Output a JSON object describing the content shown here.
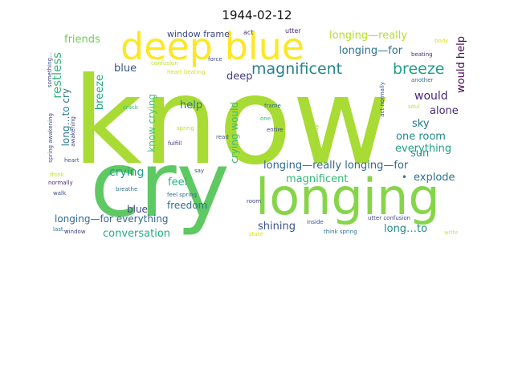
{
  "title": "1944-02-12",
  "words": [
    {
      "text": "know",
      "color": "#a8db34"
    },
    {
      "text": "cry",
      "color": "#5ec962"
    },
    {
      "text": "longing",
      "color": "#86d549"
    },
    {
      "text": "deep blue",
      "color": "#fde725"
    },
    {
      "text": "magnificent",
      "color": "#26828e"
    },
    {
      "text": "breeze",
      "color": "#1f9e89"
    },
    {
      "text": "longing—really",
      "color": "#b5de2b"
    },
    {
      "text": "longing—for",
      "color": "#2c728e"
    },
    {
      "text": "longing—really longing—for",
      "color": "#31688e"
    },
    {
      "text": "window frame",
      "color": "#3e4a89"
    },
    {
      "text": "friends",
      "color": "#6ece58"
    },
    {
      "text": "restless",
      "color": "#35b779"
    },
    {
      "text": "long…to cry",
      "color": "#2a788e"
    },
    {
      "text": "breeze",
      "color": "#22a884"
    },
    {
      "text": "blue",
      "color": "#3b528b"
    },
    {
      "text": "deep",
      "color": "#433e85"
    },
    {
      "text": "would help",
      "color": "#440154"
    },
    {
      "text": "would",
      "color": "#482878"
    },
    {
      "text": "alone",
      "color": "#472d7b"
    },
    {
      "text": "sky",
      "color": "#2a788e"
    },
    {
      "text": "sun",
      "color": "#21918c"
    },
    {
      "text": "one room",
      "color": "#23898e"
    },
    {
      "text": "everything",
      "color": "#1fa088"
    },
    {
      "text": "explode",
      "color": "#2c728e"
    },
    {
      "text": "•",
      "color": "#277f8e"
    },
    {
      "text": "magnificent",
      "color": "#35b779"
    },
    {
      "text": "help",
      "color": "#2a788e"
    },
    {
      "text": "know crying",
      "color": "#4ac16d"
    },
    {
      "text": "crying would",
      "color": "#3fbc73"
    },
    {
      "text": "crying",
      "color": "#1f9e89"
    },
    {
      "text": "feel",
      "color": "#2db27d"
    },
    {
      "text": "freedom",
      "color": "#2c728e"
    },
    {
      "text": "blue",
      "color": "#3e4989"
    },
    {
      "text": "longing—for everything",
      "color": "#31688e"
    },
    {
      "text": "conversation",
      "color": "#25ab82"
    },
    {
      "text": "shining",
      "color": "#3b528b"
    },
    {
      "text": "long…to",
      "color": "#238a8d"
    },
    {
      "text": "act",
      "color": "#46337e"
    },
    {
      "text": "utter",
      "color": "#482878"
    },
    {
      "text": "body",
      "color": "#dde318"
    },
    {
      "text": "beating",
      "color": "#472d7b"
    },
    {
      "text": "something…",
      "color": "#3e4a89"
    },
    {
      "text": "confusion",
      "color": "#bddf26"
    },
    {
      "text": "force",
      "color": "#3f4788"
    },
    {
      "text": "heart beating",
      "color": "#d8e219"
    },
    {
      "text": "another",
      "color": "#31688e"
    },
    {
      "text": "act normally",
      "color": "#3b528b"
    },
    {
      "text": "soul",
      "color": "#c0df25"
    },
    {
      "text": "crack",
      "color": "#35b779"
    },
    {
      "text": "frame",
      "color": "#2d708e"
    },
    {
      "text": "one",
      "color": "#3dbc74"
    },
    {
      "text": "entire",
      "color": "#414487"
    },
    {
      "text": "entire body",
      "color": "#a0da39"
    },
    {
      "text": "spring",
      "color": "#b8de29"
    },
    {
      "text": "read",
      "color": "#3b528b"
    },
    {
      "text": "fulfill",
      "color": "#453781"
    },
    {
      "text": "spring awakening",
      "color": "#3e4c8a"
    },
    {
      "text": "awakening",
      "color": "#414487"
    },
    {
      "text": "heart",
      "color": "#3b528b"
    },
    {
      "text": "think",
      "color": "#c2df23"
    },
    {
      "text": "normally",
      "color": "#482878"
    },
    {
      "text": "say",
      "color": "#3e4a89"
    },
    {
      "text": "walk",
      "color": "#3b528b"
    },
    {
      "text": "breathe",
      "color": "#2c728e"
    },
    {
      "text": "feel spring",
      "color": "#31688e"
    },
    {
      "text": "last…",
      "color": "#2a788e"
    },
    {
      "text": "room",
      "color": "#3e4989"
    },
    {
      "text": "inside",
      "color": "#3b528b"
    },
    {
      "text": "utter confusion",
      "color": "#3f4788"
    },
    {
      "text": "window",
      "color": "#433e85"
    },
    {
      "text": "state",
      "color": "#d5e21a"
    },
    {
      "text": "think spring",
      "color": "#2c728e"
    },
    {
      "text": "write",
      "color": "#e2e418"
    }
  ]
}
